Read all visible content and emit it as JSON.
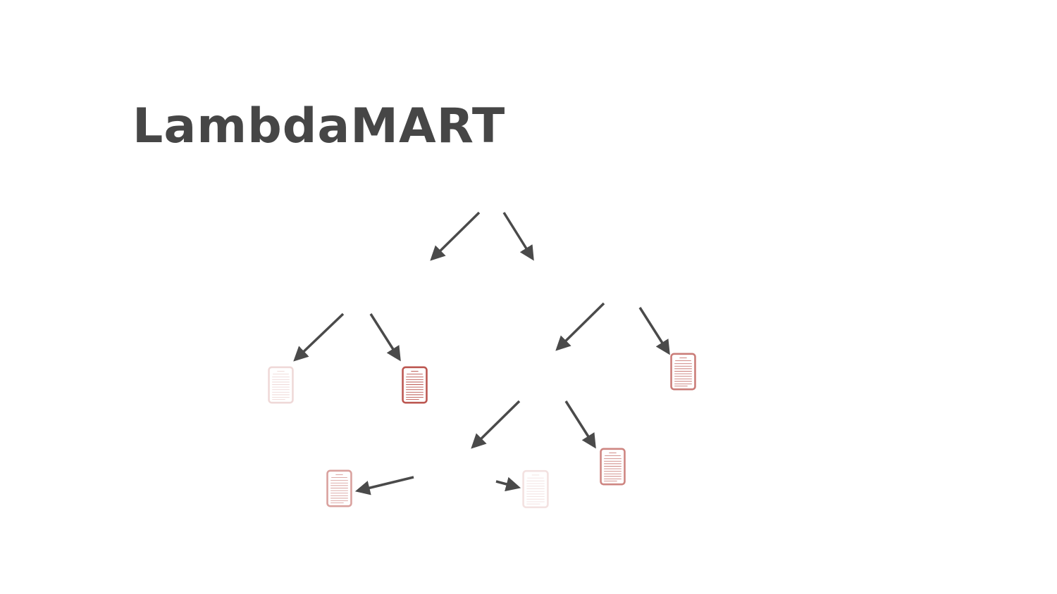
{
  "title": "LambdaMART"
}
